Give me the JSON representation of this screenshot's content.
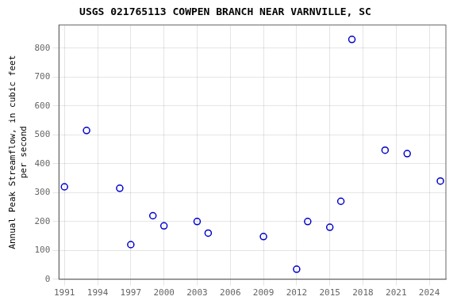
{
  "chart_data": {
    "type": "scatter",
    "title": "USGS 021765113 COWPEN BRANCH NEAR VARNVILLE, SC",
    "ylabel": [
      "Annual Peak Streamflow, in cubic feet",
      "per second"
    ],
    "x": [
      1991,
      1993,
      1996,
      1997,
      1999,
      2000,
      2003,
      2004,
      2009,
      2012,
      2013,
      2015,
      2016,
      2017,
      2020,
      2022,
      2025
    ],
    "values": [
      320,
      515,
      315,
      120,
      220,
      185,
      200,
      160,
      148,
      35,
      200,
      180,
      270,
      830,
      447,
      435,
      340
    ],
    "color": "#0000cc",
    "marker": "circle",
    "xlim": [
      1990.5,
      2025.5
    ],
    "xticks": [
      1991,
      1994,
      1997,
      2000,
      2003,
      2006,
      2009,
      2012,
      2015,
      2018,
      2021,
      2024
    ],
    "ylim": [
      0,
      880
    ],
    "yticks": [
      0,
      100,
      200,
      300,
      400,
      500,
      600,
      700,
      800
    ],
    "grid": true
  }
}
